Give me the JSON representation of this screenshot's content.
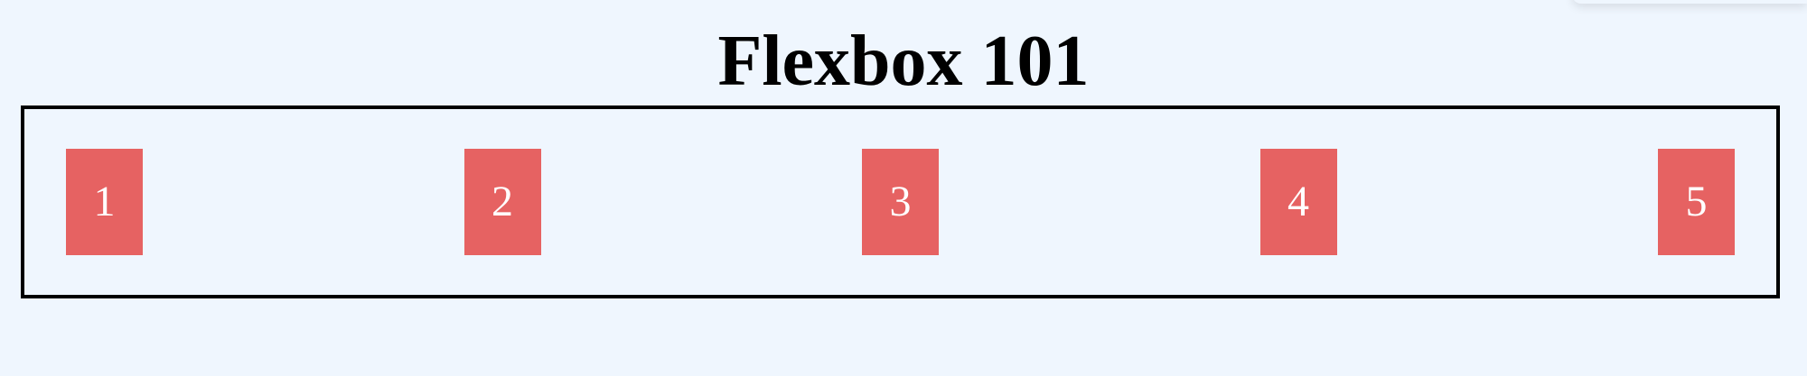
{
  "title": "Flexbox 101",
  "colors": {
    "background": "#EFF6FE",
    "item_background": "#E66262",
    "border": "#000000"
  },
  "items": [
    {
      "label": "1"
    },
    {
      "label": "2"
    },
    {
      "label": "3"
    },
    {
      "label": "4"
    },
    {
      "label": "5"
    }
  ]
}
